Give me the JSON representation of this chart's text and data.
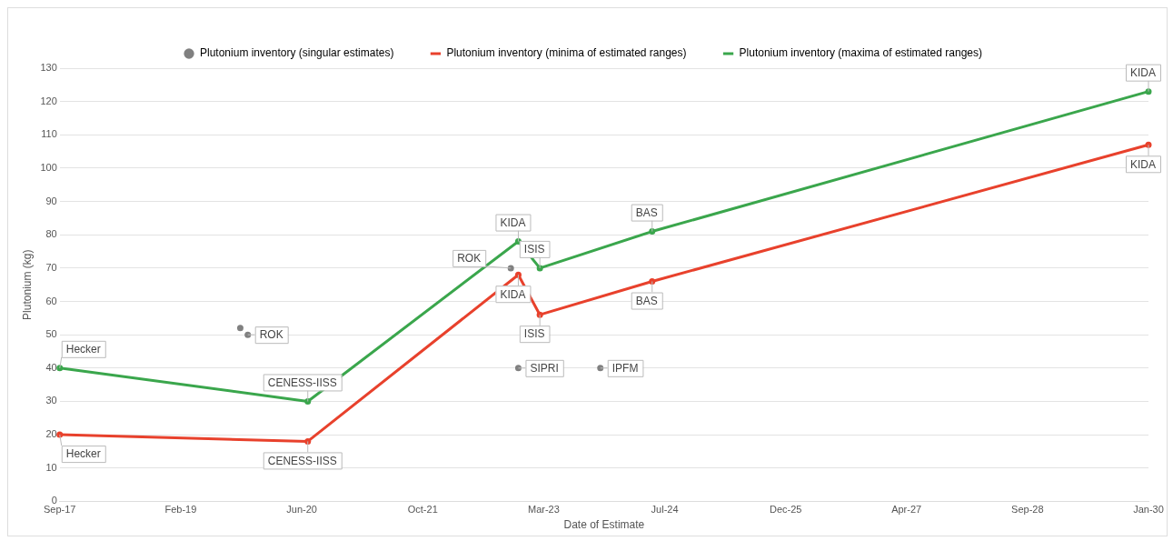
{
  "chart_data": {
    "type": "line",
    "xlabel": "Date of Estimate",
    "ylabel": "Plutonium (kg)",
    "series": [
      {
        "name": "Plutonium inventory (singular estimates)",
        "type": "scatter",
        "color": "#808080",
        "x": [
          "2019-10-06",
          "2019-11-06",
          "2022-10-28",
          "2022-11-28",
          "2023-11-02"
        ],
        "values": [
          52,
          50,
          70,
          40,
          40
        ]
      },
      {
        "name": "Plutonium inventory (minima of estimated ranges)",
        "color": "#e8412c",
        "x": [
          "2017-09-20",
          "2020-07-11",
          "2022-11-28",
          "2023-02-25",
          "2024-06-03",
          "2030-01-14"
        ],
        "values": [
          20,
          18,
          68,
          56,
          66,
          107
        ]
      },
      {
        "name": "Plutonium inventory (maxima of estimated ranges)",
        "color": "#3aa64c",
        "x": [
          "2017-09-20",
          "2020-07-11",
          "2022-11-28",
          "2023-02-25",
          "2024-06-03",
          "2030-01-14"
        ],
        "values": [
          40,
          30,
          78,
          70,
          81,
          123
        ]
      }
    ],
    "xlim": [
      "2017-09-20",
      "2030-01-14"
    ],
    "xticks": [
      {
        "value": "2017-09-20",
        "label": "Sep-17"
      },
      {
        "value": "2019-02-02",
        "label": "Feb-19"
      },
      {
        "value": "2020-06-16",
        "label": "Jun-20"
      },
      {
        "value": "2021-10-29",
        "label": "Oct-21"
      },
      {
        "value": "2023-03-13",
        "label": "Mar-23"
      },
      {
        "value": "2024-07-25",
        "label": "Jul-24"
      },
      {
        "value": "2025-12-07",
        "label": "Dec-25"
      },
      {
        "value": "2027-04-20",
        "label": "Apr-27"
      },
      {
        "value": "2028-09-01",
        "label": "Sep-28"
      },
      {
        "value": "2030-01-14",
        "label": "Jan-30"
      }
    ],
    "ylim": [
      0,
      130
    ],
    "yticks": [
      0,
      10,
      20,
      30,
      40,
      50,
      60,
      70,
      80,
      90,
      100,
      110,
      120,
      130
    ],
    "grid": "y",
    "legend": "top",
    "marker": "circle",
    "line_style": "solid",
    "annotations": [
      {
        "text": "Hecker",
        "x": "2017-09-20",
        "y": 40
      },
      {
        "text": "Hecker",
        "x": "2017-09-20",
        "y": 20
      },
      {
        "text": "CENESS-IISS",
        "x": "2020-07-11",
        "y": 30
      },
      {
        "text": "CENESS-IISS",
        "x": "2020-07-11",
        "y": 18
      },
      {
        "text": "ROK",
        "x": "2019-11-06",
        "y": 50
      },
      {
        "text": "ROK",
        "x": "2022-10-28",
        "y": 70
      },
      {
        "text": "KIDA",
        "x": "2022-11-28",
        "y": 78
      },
      {
        "text": "KIDA",
        "x": "2022-11-28",
        "y": 68
      },
      {
        "text": "ISIS",
        "x": "2023-02-25",
        "y": 70
      },
      {
        "text": "ISIS",
        "x": "2023-02-25",
        "y": 56
      },
      {
        "text": "SIPRI",
        "x": "2022-11-28",
        "y": 40
      },
      {
        "text": "IPFM",
        "x": "2023-11-02",
        "y": 40
      },
      {
        "text": "BAS",
        "x": "2024-06-03",
        "y": 81
      },
      {
        "text": "BAS",
        "x": "2024-06-03",
        "y": 66
      },
      {
        "text": "KIDA",
        "x": "2030-01-14",
        "y": 123
      },
      {
        "text": "KIDA",
        "x": "2030-01-14",
        "y": 107
      }
    ]
  }
}
